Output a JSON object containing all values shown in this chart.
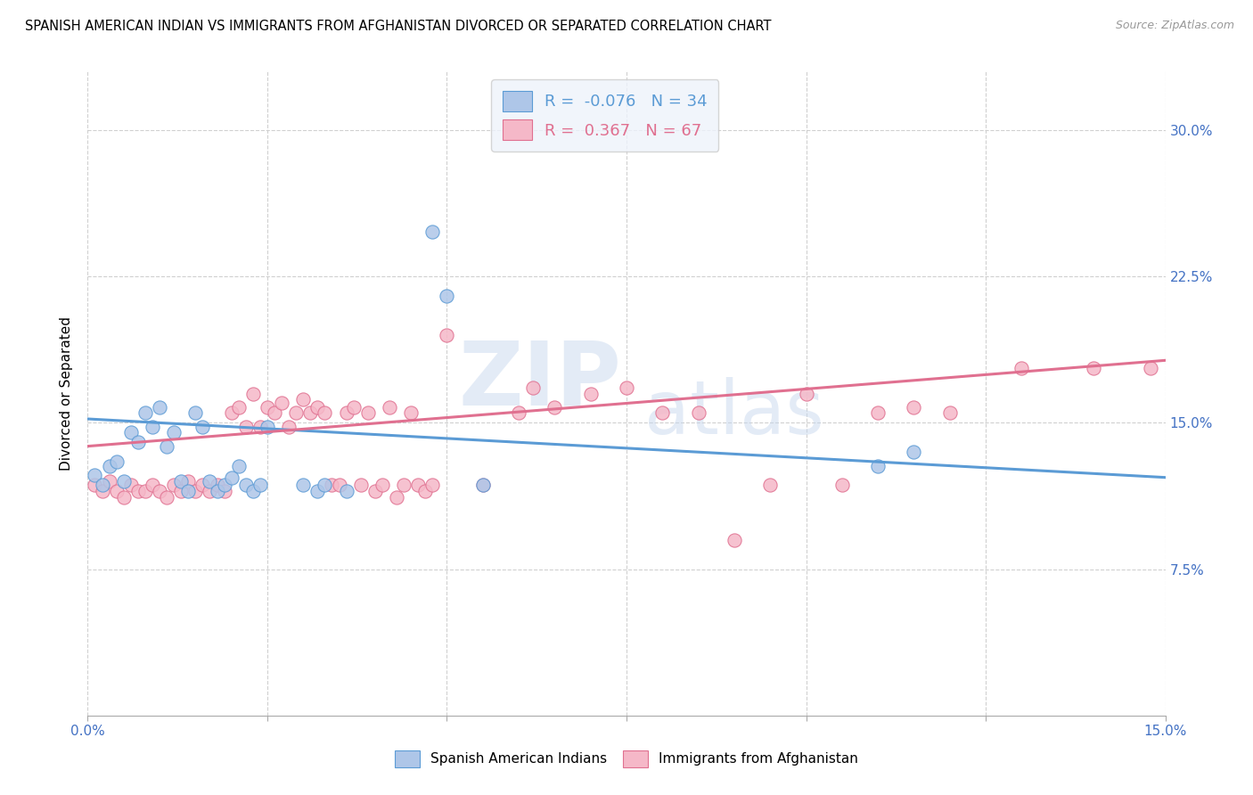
{
  "title": "SPANISH AMERICAN INDIAN VS IMMIGRANTS FROM AFGHANISTAN DIVORCED OR SEPARATED CORRELATION CHART",
  "source": "Source: ZipAtlas.com",
  "ylabel": "Divorced or Separated",
  "xlim": [
    0.0,
    0.15
  ],
  "ylim": [
    0.0,
    0.33
  ],
  "xticks": [
    0.0,
    0.025,
    0.05,
    0.075,
    0.1,
    0.125,
    0.15
  ],
  "ytick_positions": [
    0.075,
    0.15,
    0.225,
    0.3
  ],
  "ytick_labels": [
    "7.5%",
    "15.0%",
    "22.5%",
    "30.0%"
  ],
  "blue_R": -0.076,
  "blue_N": 34,
  "pink_R": 0.367,
  "pink_N": 67,
  "blue_color": "#aec6e8",
  "pink_color": "#f5b8c8",
  "blue_line_color": "#5b9bd5",
  "pink_line_color": "#e07090",
  "blue_trend": [
    0.152,
    0.122
  ],
  "pink_trend": [
    0.138,
    0.182
  ],
  "blue_scatter": [
    [
      0.001,
      0.123
    ],
    [
      0.002,
      0.118
    ],
    [
      0.003,
      0.128
    ],
    [
      0.004,
      0.13
    ],
    [
      0.005,
      0.12
    ],
    [
      0.006,
      0.145
    ],
    [
      0.007,
      0.14
    ],
    [
      0.008,
      0.155
    ],
    [
      0.009,
      0.148
    ],
    [
      0.01,
      0.158
    ],
    [
      0.011,
      0.138
    ],
    [
      0.012,
      0.145
    ],
    [
      0.013,
      0.12
    ],
    [
      0.014,
      0.115
    ],
    [
      0.015,
      0.155
    ],
    [
      0.016,
      0.148
    ],
    [
      0.017,
      0.12
    ],
    [
      0.018,
      0.115
    ],
    [
      0.019,
      0.118
    ],
    [
      0.02,
      0.122
    ],
    [
      0.021,
      0.128
    ],
    [
      0.022,
      0.118
    ],
    [
      0.023,
      0.115
    ],
    [
      0.024,
      0.118
    ],
    [
      0.025,
      0.148
    ],
    [
      0.03,
      0.118
    ],
    [
      0.032,
      0.115
    ],
    [
      0.033,
      0.118
    ],
    [
      0.036,
      0.115
    ],
    [
      0.048,
      0.248
    ],
    [
      0.05,
      0.215
    ],
    [
      0.055,
      0.118
    ],
    [
      0.11,
      0.128
    ],
    [
      0.115,
      0.135
    ]
  ],
  "pink_scatter": [
    [
      0.001,
      0.118
    ],
    [
      0.002,
      0.115
    ],
    [
      0.003,
      0.12
    ],
    [
      0.004,
      0.115
    ],
    [
      0.005,
      0.112
    ],
    [
      0.006,
      0.118
    ],
    [
      0.007,
      0.115
    ],
    [
      0.008,
      0.115
    ],
    [
      0.009,
      0.118
    ],
    [
      0.01,
      0.115
    ],
    [
      0.011,
      0.112
    ],
    [
      0.012,
      0.118
    ],
    [
      0.013,
      0.115
    ],
    [
      0.014,
      0.12
    ],
    [
      0.015,
      0.115
    ],
    [
      0.016,
      0.118
    ],
    [
      0.017,
      0.115
    ],
    [
      0.018,
      0.118
    ],
    [
      0.019,
      0.115
    ],
    [
      0.02,
      0.155
    ],
    [
      0.021,
      0.158
    ],
    [
      0.022,
      0.148
    ],
    [
      0.023,
      0.165
    ],
    [
      0.024,
      0.148
    ],
    [
      0.025,
      0.158
    ],
    [
      0.026,
      0.155
    ],
    [
      0.027,
      0.16
    ],
    [
      0.028,
      0.148
    ],
    [
      0.029,
      0.155
    ],
    [
      0.03,
      0.162
    ],
    [
      0.031,
      0.155
    ],
    [
      0.032,
      0.158
    ],
    [
      0.033,
      0.155
    ],
    [
      0.034,
      0.118
    ],
    [
      0.035,
      0.118
    ],
    [
      0.036,
      0.155
    ],
    [
      0.037,
      0.158
    ],
    [
      0.038,
      0.118
    ],
    [
      0.039,
      0.155
    ],
    [
      0.04,
      0.115
    ],
    [
      0.041,
      0.118
    ],
    [
      0.042,
      0.158
    ],
    [
      0.043,
      0.112
    ],
    [
      0.044,
      0.118
    ],
    [
      0.045,
      0.155
    ],
    [
      0.046,
      0.118
    ],
    [
      0.047,
      0.115
    ],
    [
      0.048,
      0.118
    ],
    [
      0.05,
      0.195
    ],
    [
      0.055,
      0.118
    ],
    [
      0.06,
      0.155
    ],
    [
      0.062,
      0.168
    ],
    [
      0.065,
      0.158
    ],
    [
      0.07,
      0.165
    ],
    [
      0.075,
      0.168
    ],
    [
      0.08,
      0.155
    ],
    [
      0.085,
      0.155
    ],
    [
      0.09,
      0.09
    ],
    [
      0.095,
      0.118
    ],
    [
      0.1,
      0.165
    ],
    [
      0.105,
      0.118
    ],
    [
      0.11,
      0.155
    ],
    [
      0.115,
      0.158
    ],
    [
      0.12,
      0.155
    ],
    [
      0.13,
      0.178
    ],
    [
      0.14,
      0.178
    ],
    [
      0.148,
      0.178
    ]
  ],
  "watermark_line1": "ZIP",
  "watermark_line2": "atlas",
  "legend_box_color": "#eef3fb",
  "background_color": "#ffffff",
  "grid_color": "#d0d0d0"
}
